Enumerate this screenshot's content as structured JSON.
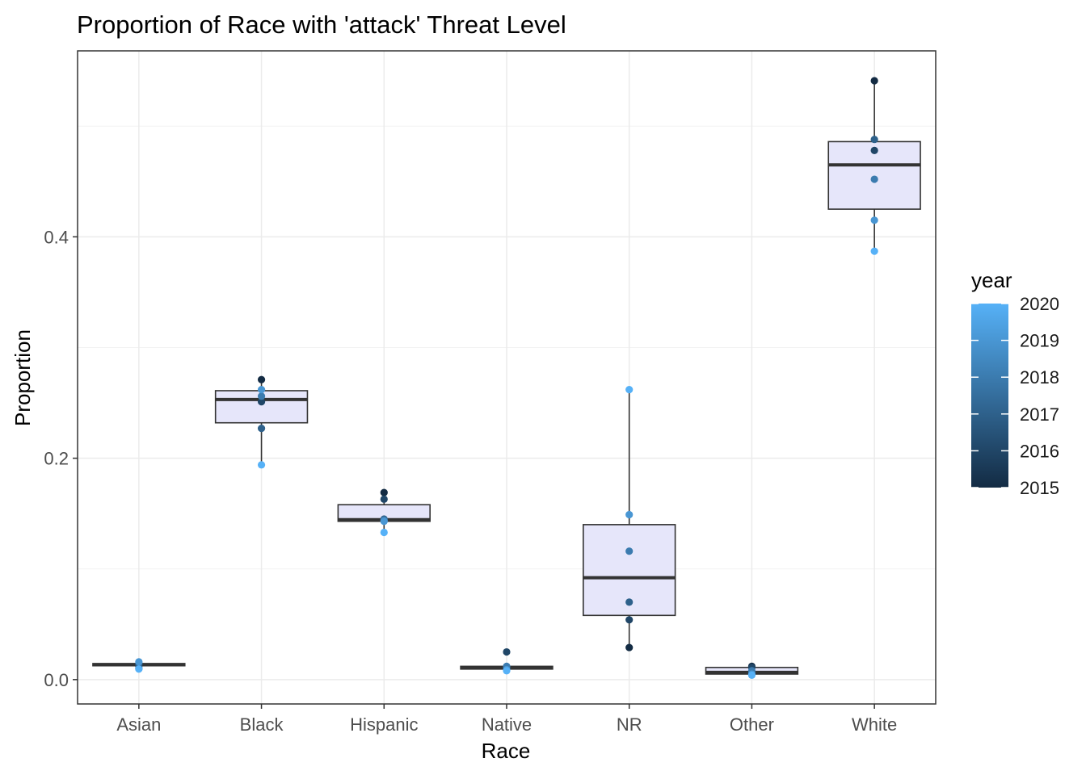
{
  "chart_data": {
    "type": "boxplot",
    "title": "Proportion of Race with 'attack' Threat Level",
    "xlabel": "Race",
    "ylabel": "Proportion",
    "ylim": [
      -0.022,
      0.568
    ],
    "yticks": [
      0.0,
      0.2,
      0.4
    ],
    "ytick_labels": [
      "0.0",
      "0.2",
      "0.4"
    ],
    "grid": true,
    "box_fill": "#e6e6fa",
    "box_stroke": "#333333",
    "categories": [
      "Asian",
      "Black",
      "Hispanic",
      "Native",
      "NR",
      "Other",
      "White"
    ],
    "boxes": [
      {
        "category": "Asian",
        "whisker_low": 0.0095,
        "q1": 0.0125,
        "median": 0.0135,
        "q3": 0.0145,
        "whisker_high": 0.016
      },
      {
        "category": "Black",
        "whisker_low": 0.194,
        "q1": 0.232,
        "median": 0.253,
        "q3": 0.261,
        "whisker_high": 0.271
      },
      {
        "category": "Hispanic",
        "whisker_low": 0.133,
        "q1": 0.143,
        "median": 0.1445,
        "q3": 0.158,
        "whisker_high": 0.169
      },
      {
        "category": "Native",
        "whisker_low": 0.008,
        "q1": 0.0095,
        "median": 0.0105,
        "q3": 0.012,
        "whisker_high": 0.0135
      },
      {
        "category": "NR",
        "whisker_low": 0.029,
        "q1": 0.058,
        "median": 0.092,
        "q3": 0.14,
        "whisker_high": 0.262
      },
      {
        "category": "Other",
        "whisker_low": 0.004,
        "q1": 0.005,
        "median": 0.0065,
        "q3": 0.011,
        "whisker_high": 0.012
      },
      {
        "category": "White",
        "whisker_low": 0.387,
        "q1": 0.425,
        "median": 0.465,
        "q3": 0.486,
        "whisker_high": 0.541
      }
    ],
    "points": [
      {
        "category": "Asian",
        "year": 2015,
        "value": 0.0135
      },
      {
        "category": "Asian",
        "year": 2016,
        "value": 0.0125
      },
      {
        "category": "Asian",
        "year": 2017,
        "value": 0.0145
      },
      {
        "category": "Asian",
        "year": 2018,
        "value": 0.01
      },
      {
        "category": "Asian",
        "year": 2019,
        "value": 0.016
      },
      {
        "category": "Asian",
        "year": 2020,
        "value": 0.0095
      },
      {
        "category": "Black",
        "year": 2015,
        "value": 0.271
      },
      {
        "category": "Black",
        "year": 2016,
        "value": 0.251
      },
      {
        "category": "Black",
        "year": 2017,
        "value": 0.227
      },
      {
        "category": "Black",
        "year": 2018,
        "value": 0.256
      },
      {
        "category": "Black",
        "year": 2019,
        "value": 0.262
      },
      {
        "category": "Black",
        "year": 2020,
        "value": 0.194
      },
      {
        "category": "Hispanic",
        "year": 2015,
        "value": 0.169
      },
      {
        "category": "Hispanic",
        "year": 2016,
        "value": 0.163
      },
      {
        "category": "Hispanic",
        "year": 2017,
        "value": 0.145
      },
      {
        "category": "Hispanic",
        "year": 2018,
        "value": 0.144
      },
      {
        "category": "Hispanic",
        "year": 2019,
        "value": 0.143
      },
      {
        "category": "Hispanic",
        "year": 2020,
        "value": 0.133
      },
      {
        "category": "Native",
        "year": 2015,
        "value": 0.01
      },
      {
        "category": "Native",
        "year": 2016,
        "value": 0.025
      },
      {
        "category": "Native",
        "year": 2017,
        "value": 0.011
      },
      {
        "category": "Native",
        "year": 2018,
        "value": 0.012
      },
      {
        "category": "Native",
        "year": 2019,
        "value": 0.009
      },
      {
        "category": "Native",
        "year": 2020,
        "value": 0.008
      },
      {
        "category": "NR",
        "year": 2015,
        "value": 0.029
      },
      {
        "category": "NR",
        "year": 2016,
        "value": 0.054
      },
      {
        "category": "NR",
        "year": 2017,
        "value": 0.07
      },
      {
        "category": "NR",
        "year": 2018,
        "value": 0.116
      },
      {
        "category": "NR",
        "year": 2019,
        "value": 0.149
      },
      {
        "category": "NR",
        "year": 2020,
        "value": 0.262
      },
      {
        "category": "Other",
        "year": 2015,
        "value": 0.012
      },
      {
        "category": "Other",
        "year": 2016,
        "value": 0.011
      },
      {
        "category": "Other",
        "year": 2017,
        "value": 0.006
      },
      {
        "category": "Other",
        "year": 2018,
        "value": 0.008
      },
      {
        "category": "Other",
        "year": 2019,
        "value": 0.005
      },
      {
        "category": "Other",
        "year": 2020,
        "value": 0.004
      },
      {
        "category": "White",
        "year": 2015,
        "value": 0.541
      },
      {
        "category": "White",
        "year": 2016,
        "value": 0.478
      },
      {
        "category": "White",
        "year": 2017,
        "value": 0.488
      },
      {
        "category": "White",
        "year": 2018,
        "value": 0.452
      },
      {
        "category": "White",
        "year": 2019,
        "value": 0.415
      },
      {
        "category": "White",
        "year": 2020,
        "value": 0.387
      }
    ],
    "legend": {
      "title": "year",
      "type": "colorbar",
      "placement": "right",
      "min": 2015,
      "max": 2020,
      "labels": [
        "2020",
        "2019",
        "2018",
        "2017",
        "2016",
        "2015"
      ],
      "color_low": "#132b43",
      "color_high": "#56b1f7"
    }
  }
}
